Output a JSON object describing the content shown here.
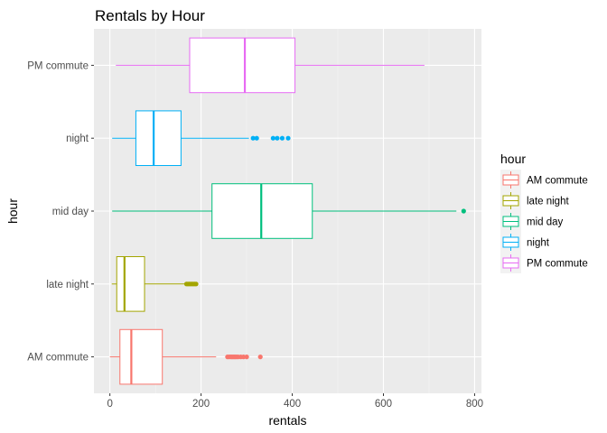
{
  "chart_data": {
    "type": "boxplot",
    "orientation": "horizontal",
    "title": "Rentals by Hour",
    "xlabel": "rentals",
    "ylabel": "hour",
    "xlim": [
      -35,
      815
    ],
    "x_ticks": [
      0,
      200,
      400,
      600,
      800
    ],
    "x_tick_labels": [
      "0",
      "200",
      "400",
      "600",
      "800"
    ],
    "grid": true,
    "legend": {
      "title": "hour",
      "position": "right",
      "entries": [
        "AM commute",
        "late night",
        "mid day",
        "night",
        "PM commute"
      ]
    },
    "categories": [
      "AM commute",
      "late night",
      "mid day",
      "night",
      "PM commute"
    ],
    "series": [
      {
        "name": "AM commute",
        "color": "#F8766D",
        "min": 0,
        "q1": 22,
        "median": 47,
        "q3": 115,
        "max": 233,
        "outliers": [
          258,
          262,
          265,
          268,
          271,
          274,
          277,
          281,
          287,
          293,
          300,
          330
        ]
      },
      {
        "name": "late night",
        "color": "#A3A500",
        "min": 4,
        "q1": 15,
        "median": 32,
        "q3": 76,
        "max": 166,
        "outliers": [
          168,
          171,
          174,
          177,
          180,
          183,
          186,
          189
        ]
      },
      {
        "name": "mid day",
        "color": "#00BF7D",
        "min": 5,
        "q1": 224,
        "median": 332,
        "q3": 444,
        "max": 760,
        "outliers": [
          776
        ]
      },
      {
        "name": "night",
        "color": "#00B0F6",
        "min": 5,
        "q1": 57,
        "median": 96,
        "q3": 156,
        "max": 305,
        "outliers": [
          314,
          322,
          358,
          367,
          378,
          391
        ]
      },
      {
        "name": "PM commute",
        "color": "#E76BF3",
        "min": 13,
        "q1": 175,
        "median": 296,
        "q3": 406,
        "max": 690,
        "outliers": []
      }
    ]
  }
}
